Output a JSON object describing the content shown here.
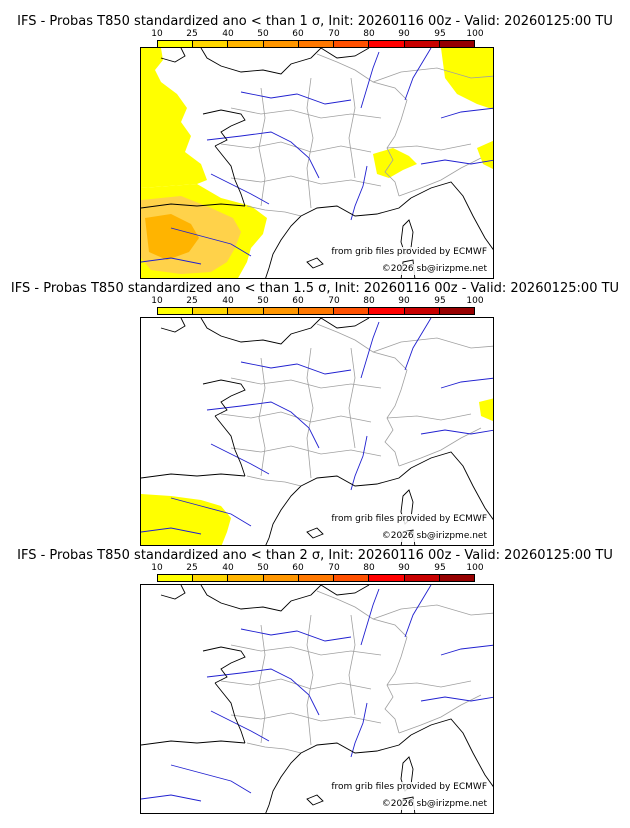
{
  "colors": {
    "scale": [
      "#ffff00",
      "#ffd700",
      "#ffb400",
      "#ff9600",
      "#ff7800",
      "#ff5000",
      "#ff0000",
      "#c80000",
      "#960000",
      "#640000"
    ],
    "coast": "#000000",
    "rivers": "#2020d0",
    "borders": "#a0a0a0"
  },
  "colorbar": {
    "ticks": [
      "10",
      "25",
      "40",
      "50",
      "60",
      "70",
      "80",
      "90",
      "95",
      "100"
    ]
  },
  "credits": {
    "grib": "from grib files provided by ECMWF",
    "copyright": "©2026 sb@irizpme.net"
  },
  "panels": [
    {
      "title": "IFS - Probas T850  standardized ano < than 1 σ, Init: 20260116 00z - Valid: 20260125:00 TU"
    },
    {
      "title": "IFS - Probas T850  standardized ano < than 1.5 σ, Init: 20260116 00z - Valid: 20260125:00 TU"
    },
    {
      "title": "IFS - Probas T850  standardized ano < than 2 σ, Init: 20260116 00z - Valid: 20260125:00 TU"
    }
  ]
}
